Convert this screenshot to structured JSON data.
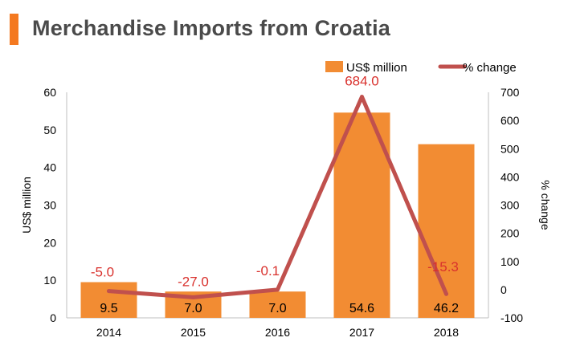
{
  "page": {
    "title": "Merchandise Imports from Croatia",
    "accent_color": "#f47920"
  },
  "chart_data": {
    "type": "bar+line",
    "title": "Merchandise Imports from Croatia",
    "categories": [
      "2014",
      "2015",
      "2016",
      "2017",
      "2018"
    ],
    "series": [
      {
        "name": "US$ million",
        "type": "bar",
        "axis": "left",
        "color": "#f28c33",
        "values": [
          9.5,
          7.0,
          7.0,
          54.6,
          46.2
        ],
        "labels": [
          "9.5",
          "7.0",
          "7.0",
          "54.6",
          "46.2"
        ],
        "label_color": "#000000"
      },
      {
        "name": "% change",
        "type": "line",
        "axis": "right",
        "color": "#c0504d",
        "values": [
          -5.0,
          -27.0,
          -0.1,
          684.0,
          -15.3
        ],
        "labels": [
          "-5.0",
          "-27.0",
          "-0.1",
          "684.0",
          "-15.3"
        ],
        "label_color": "#d9312d"
      }
    ],
    "ylabel": "US$ million",
    "ylabel_right": "% change",
    "ylim": [
      0,
      60
    ],
    "ylim_right": [
      -100,
      700
    ],
    "yticks": [
      "0",
      "10",
      "20",
      "30",
      "40",
      "50",
      "60"
    ],
    "yticks_right": [
      "-100",
      "0",
      "100",
      "200",
      "300",
      "400",
      "500",
      "600",
      "700"
    ],
    "legend": {
      "position": "top-right"
    },
    "grid": false
  }
}
